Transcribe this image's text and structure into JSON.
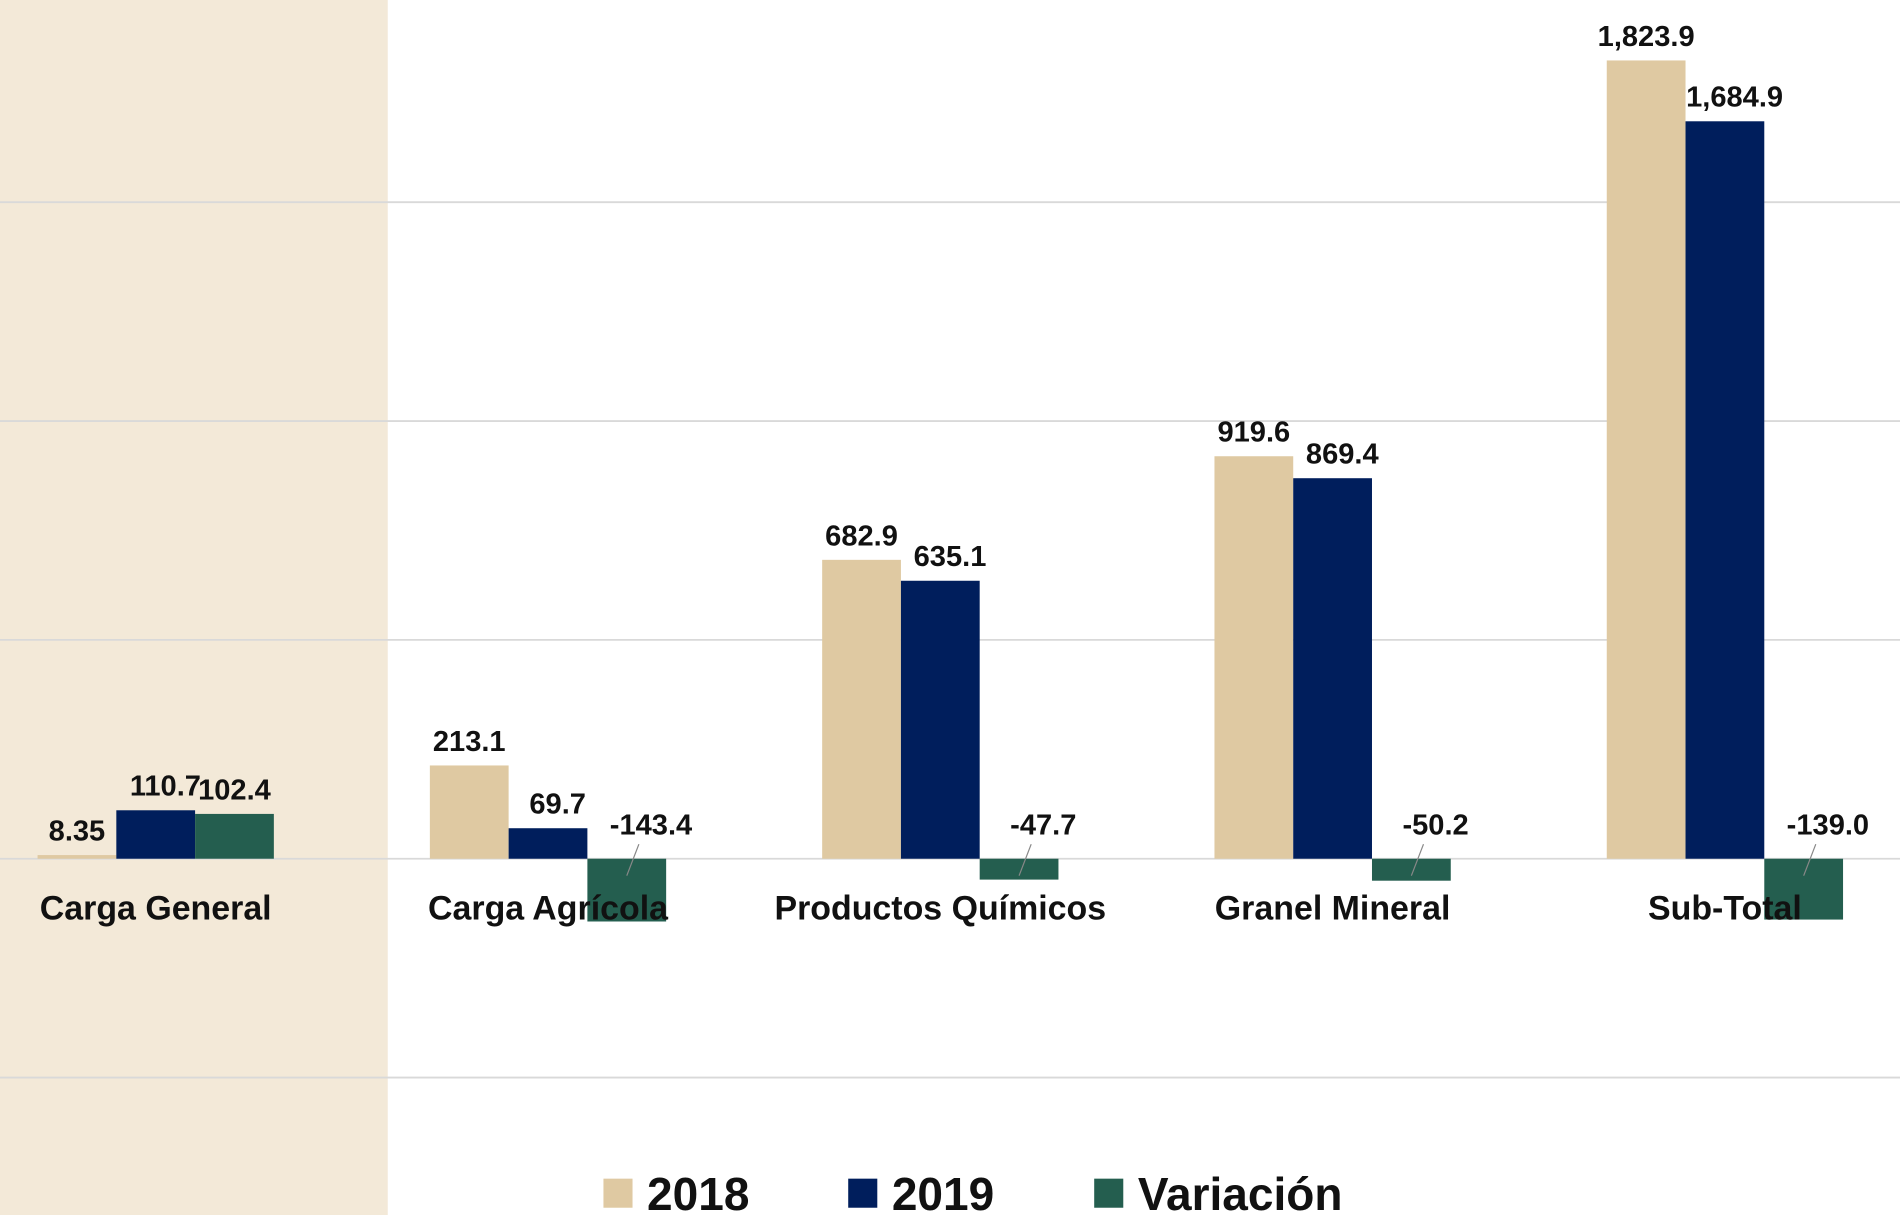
{
  "chart_data": {
    "type": "bar",
    "categories": [
      "Carga General",
      "Carga Agrícola",
      "Productos Químicos",
      "Granel Mineral",
      "Sub-Total"
    ],
    "series": [
      {
        "name": "2018",
        "color": "#dfc9a2",
        "values": [
          8.35,
          213.1,
          682.9,
          919.6,
          1823.9
        ],
        "value_labels": [
          "8.35",
          "213.1",
          "682.9",
          "919.6",
          "1,823.9"
        ]
      },
      {
        "name": "2019",
        "color": "#001e5c",
        "values": [
          110.7,
          69.7,
          635.1,
          869.4,
          1684.9
        ],
        "value_labels": [
          "110.7",
          "69.7",
          "635.1",
          "869.4",
          "1,684.9"
        ]
      },
      {
        "name": "Variación",
        "color": "#245e4f",
        "values": [
          102.4,
          -143.4,
          -47.7,
          -50.2,
          -139.0
        ],
        "value_labels": [
          "102.4",
          "-143.4",
          "-47.7",
          "-50.2",
          "-139.0"
        ]
      }
    ],
    "ylim": [
      -814,
      1962
    ],
    "yticks": [
      -500,
      0,
      500,
      1000,
      1500
    ],
    "grid": true,
    "legend": "bottom"
  }
}
